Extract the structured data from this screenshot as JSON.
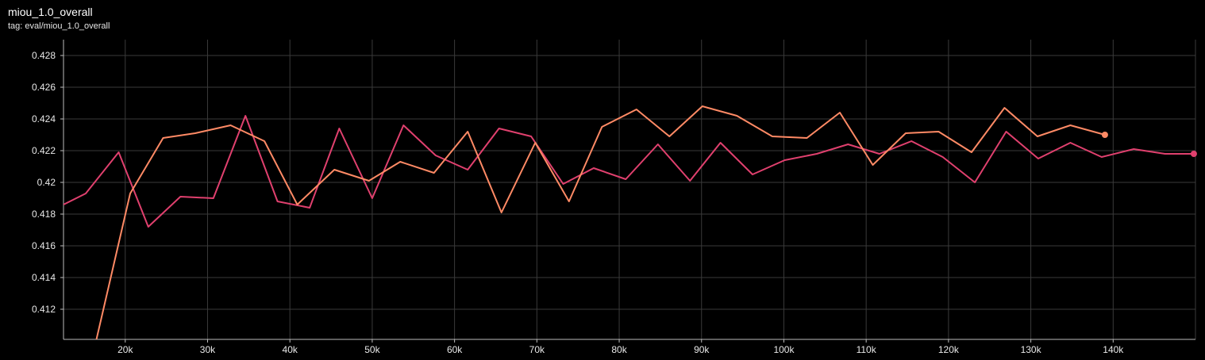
{
  "header": {
    "title": "miou_1.0_overall",
    "subtitle": "tag: eval/miou_1.0_overall"
  },
  "colors": {
    "background": "#000000",
    "grid": "#3a3a3a",
    "axis": "#bdbdbd",
    "series_a": "#ff8a65",
    "series_b": "#e0406e"
  },
  "chart_data": {
    "type": "line",
    "grid": true,
    "xlim": [
      12500,
      150000
    ],
    "ylim": [
      0.4101,
      0.429
    ],
    "x_ticks": [
      20000,
      30000,
      40000,
      50000,
      60000,
      70000,
      80000,
      90000,
      100000,
      110000,
      120000,
      130000,
      140000
    ],
    "x_tick_labels": [
      "20k",
      "30k",
      "40k",
      "50k",
      "60k",
      "70k",
      "80k",
      "90k",
      "100k",
      "110k",
      "120k",
      "130k",
      "140k"
    ],
    "y_ticks": [
      0.412,
      0.414,
      0.416,
      0.418,
      0.42,
      0.422,
      0.424,
      0.426,
      0.428
    ],
    "y_tick_labels": [
      "0.412",
      "0.414",
      "0.416",
      "0.418",
      "0.42",
      "0.422",
      "0.424",
      "0.426",
      "0.428"
    ],
    "series": [
      {
        "color": "#e0406e",
        "end_marker": true,
        "points": [
          [
            12500,
            0.4186
          ],
          [
            15200,
            0.4193
          ],
          [
            19200,
            0.4219
          ],
          [
            22800,
            0.4172
          ],
          [
            26700,
            0.4191
          ],
          [
            30700,
            0.419
          ],
          [
            34600,
            0.4242
          ],
          [
            38500,
            0.4188
          ],
          [
            42400,
            0.4184
          ],
          [
            46000,
            0.4234
          ],
          [
            50000,
            0.419
          ],
          [
            53800,
            0.4236
          ],
          [
            57700,
            0.4217
          ],
          [
            61600,
            0.4208
          ],
          [
            65400,
            0.4234
          ],
          [
            69300,
            0.4229
          ],
          [
            73200,
            0.4199
          ],
          [
            76900,
            0.4209
          ],
          [
            80800,
            0.4202
          ],
          [
            84700,
            0.4224
          ],
          [
            88600,
            0.4201
          ],
          [
            92300,
            0.4225
          ],
          [
            96200,
            0.4205
          ],
          [
            100100,
            0.4214
          ],
          [
            104000,
            0.4218
          ],
          [
            107800,
            0.4224
          ],
          [
            111600,
            0.4218
          ],
          [
            115500,
            0.4226
          ],
          [
            119300,
            0.4216
          ],
          [
            123200,
            0.42
          ],
          [
            127000,
            0.4232
          ],
          [
            130900,
            0.4215
          ],
          [
            134800,
            0.4225
          ],
          [
            138600,
            0.4216
          ],
          [
            142500,
            0.4221
          ],
          [
            146300,
            0.4218
          ],
          [
            149800,
            0.4218
          ]
        ]
      },
      {
        "color": "#ff8a65",
        "end_marker": true,
        "points": [
          [
            16500,
            0.4101
          ],
          [
            20600,
            0.4193
          ],
          [
            24600,
            0.4228
          ],
          [
            28500,
            0.4231
          ],
          [
            32800,
            0.4236
          ],
          [
            36900,
            0.4226
          ],
          [
            40900,
            0.4186
          ],
          [
            45400,
            0.4208
          ],
          [
            49600,
            0.4201
          ],
          [
            53400,
            0.4213
          ],
          [
            57500,
            0.4206
          ],
          [
            61600,
            0.4232
          ],
          [
            65700,
            0.4181
          ],
          [
            69800,
            0.4225
          ],
          [
            73900,
            0.4188
          ],
          [
            77900,
            0.4235
          ],
          [
            82100,
            0.4246
          ],
          [
            86100,
            0.4229
          ],
          [
            90100,
            0.4248
          ],
          [
            94300,
            0.4242
          ],
          [
            98600,
            0.4229
          ],
          [
            102800,
            0.4228
          ],
          [
            106800,
            0.4244
          ],
          [
            110800,
            0.4211
          ],
          [
            114800,
            0.4231
          ],
          [
            118800,
            0.4232
          ],
          [
            122800,
            0.4219
          ],
          [
            126800,
            0.4247
          ],
          [
            130800,
            0.4229
          ],
          [
            134800,
            0.4236
          ],
          [
            139000,
            0.423
          ]
        ]
      }
    ]
  }
}
